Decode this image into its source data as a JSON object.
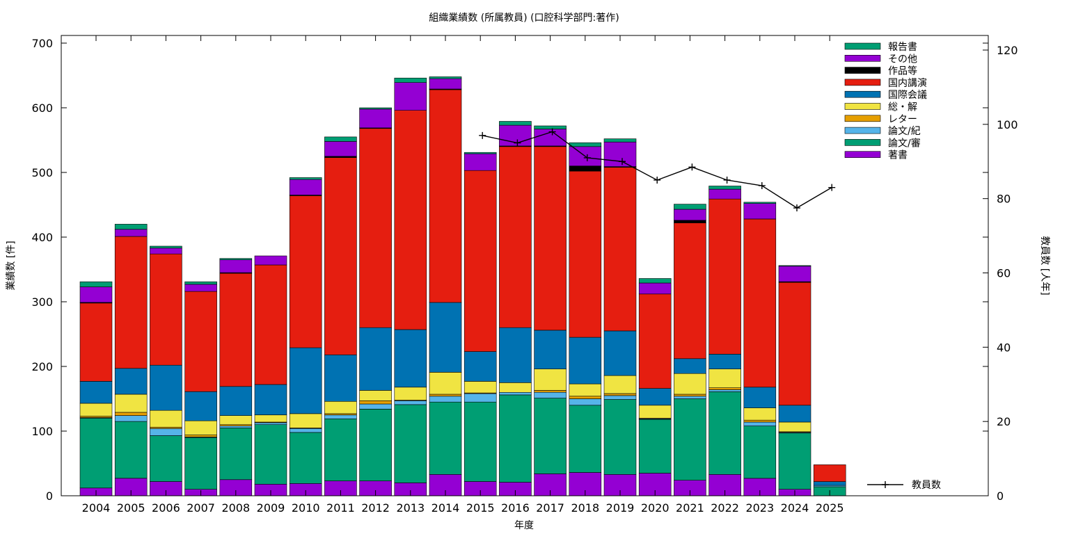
{
  "chart_data": {
    "type": "bar",
    "title": "組織業績数 (所属教員) (口腔科学部門:著作)",
    "xlabel": "年度",
    "ylabel": "業績数 [件]",
    "y2label": "教員数 [人年]",
    "ylim": [
      0,
      700
    ],
    "y2lim": [
      0,
      120
    ],
    "yticks": [
      0,
      100,
      200,
      300,
      400,
      500,
      600,
      700
    ],
    "y2ticks": [
      0,
      20,
      40,
      60,
      80,
      100,
      120
    ],
    "stacked": true,
    "grid": false,
    "legend_position": "top-right",
    "categories": [
      "2004",
      "2005",
      "2006",
      "2007",
      "2008",
      "2009",
      "2010",
      "2011",
      "2012",
      "2013",
      "2014",
      "2015",
      "2016",
      "2017",
      "2018",
      "2019",
      "2020",
      "2021",
      "2022",
      "2023",
      "2024",
      "2025"
    ],
    "series": [
      {
        "name": "著書",
        "color": "#9400d3",
        "values": [
          12,
          27,
          22,
          10,
          25,
          18,
          19,
          23,
          23,
          20,
          33,
          22,
          21,
          34,
          36,
          33,
          35,
          24,
          33,
          27,
          10,
          0
        ]
      },
      {
        "name": "論文/審",
        "color": "#009e73",
        "values": [
          108,
          88,
          71,
          80,
          80,
          92,
          79,
          96,
          111,
          121,
          112,
          123,
          135,
          117,
          104,
          116,
          83,
          126,
          128,
          81,
          87,
          14
        ]
      },
      {
        "name": "論文/紀",
        "color": "#56b4e9",
        "values": [
          1,
          9,
          11,
          1,
          3,
          3,
          6,
          6,
          8,
          6,
          9,
          13,
          4,
          9,
          10,
          6,
          1,
          4,
          3,
          6,
          1,
          2
        ]
      },
      {
        "name": "レター",
        "color": "#e69f00",
        "values": [
          2,
          5,
          2,
          3,
          2,
          1,
          1,
          2,
          5,
          1,
          3,
          1,
          0,
          3,
          4,
          3,
          1,
          3,
          3,
          3,
          1,
          0
        ]
      },
      {
        "name": "総・解",
        "color": "#f0e442",
        "values": [
          20,
          28,
          26,
          22,
          14,
          11,
          22,
          19,
          16,
          20,
          34,
          18,
          15,
          33,
          19,
          28,
          20,
          32,
          29,
          19,
          15,
          0
        ]
      },
      {
        "name": "国際会議",
        "color": "#0072b2",
        "values": [
          34,
          40,
          70,
          45,
          45,
          47,
          102,
          72,
          97,
          89,
          108,
          46,
          85,
          60,
          72,
          69,
          26,
          23,
          23,
          32,
          26,
          6
        ]
      },
      {
        "name": "国内講演",
        "color": "#e51e10",
        "values": [
          121,
          204,
          172,
          155,
          175,
          185,
          235,
          305,
          308,
          339,
          329,
          280,
          280,
          284,
          257,
          253,
          146,
          210,
          240,
          260,
          190,
          26
        ]
      },
      {
        "name": "作品等",
        "color": "#000000",
        "values": [
          1,
          0,
          0,
          0,
          1,
          0,
          1,
          2,
          1,
          0,
          1,
          0,
          1,
          1,
          8,
          1,
          0,
          4,
          0,
          0,
          1,
          0
        ]
      },
      {
        "name": "その他",
        "color": "#9400d3",
        "values": [
          24,
          11,
          9,
          11,
          20,
          14,
          24,
          23,
          29,
          43,
          16,
          26,
          32,
          26,
          30,
          38,
          17,
          17,
          15,
          24,
          24,
          0
        ]
      },
      {
        "name": "報告書",
        "color": "#009e73",
        "values": [
          8,
          8,
          3,
          4,
          2,
          0,
          3,
          7,
          2,
          7,
          3,
          2,
          6,
          5,
          6,
          5,
          7,
          8,
          5,
          2,
          1,
          0
        ]
      }
    ],
    "line_series": {
      "name": "教員数",
      "axis": "y2",
      "x": [
        "2015",
        "2016",
        "2017",
        "2018",
        "2019",
        "2020",
        "2021",
        "2022",
        "2023",
        "2024",
        "2025"
      ],
      "values": [
        97,
        95,
        98,
        91,
        90,
        85,
        88.5,
        85,
        83.5,
        77.5,
        83
      ]
    }
  }
}
